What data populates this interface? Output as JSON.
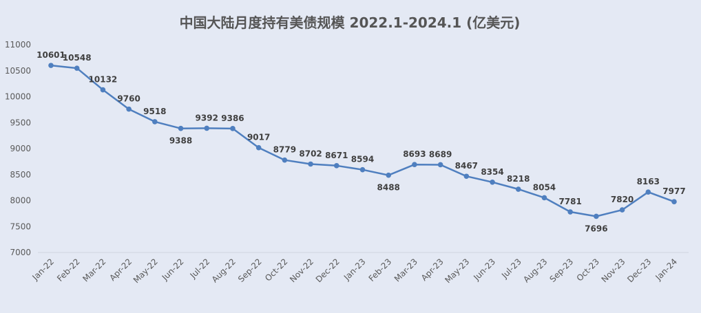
{
  "chart_data": {
    "type": "line",
    "title": "中国大陆月度持有美债规模 2022.1-2024.1 (亿美元)",
    "xlabel": "",
    "ylabel": "",
    "ylim": [
      7000,
      11000
    ],
    "yticks": [
      7000,
      7500,
      8000,
      8500,
      9000,
      9500,
      10000,
      10500,
      11000
    ],
    "grid": false,
    "legend": "none",
    "line_color": "#4f7fbf",
    "categories": [
      "Jan-22",
      "Feb-22",
      "Mar-22",
      "Apr-22",
      "May-22",
      "Jun-22",
      "Jul-22",
      "Aug-22",
      "Sep-22",
      "Oct-22",
      "Nov-22",
      "Dec-22",
      "Jan-23",
      "Feb-23",
      "Mar-23",
      "Apr-23",
      "May-23",
      "Jun-23",
      "Jul-23",
      "Aug-23",
      "Sep-23",
      "Oct-23",
      "Nov-23",
      "Dec-23",
      "Jan-24"
    ],
    "series": [
      {
        "values": [
          10601,
          10548,
          10132,
          9760,
          9518,
          9388,
          9392,
          9386,
          9017,
          8779,
          8702,
          8671,
          8594,
          8488,
          8693,
          8689,
          8467,
          8354,
          8218,
          8054,
          7781,
          7696,
          7820,
          8163,
          7977
        ]
      }
    ]
  }
}
